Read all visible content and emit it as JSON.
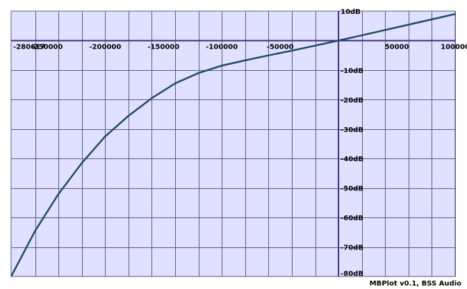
{
  "chart_data": {
    "type": "line",
    "xlim": [
      -280617,
      100000
    ],
    "ylim": [
      -80,
      10
    ],
    "x_ticks": [
      -250000,
      -200000,
      -150000,
      -100000,
      -50000,
      50000,
      100000
    ],
    "x_tick_labels": [
      "-250000",
      "-200000",
      "-150000",
      "-100000",
      "-50000",
      "50000",
      "100000"
    ],
    "x_min_label": "-280617",
    "y_ticks": [
      10,
      -10,
      -20,
      -30,
      -40,
      -50,
      -60,
      -70,
      -80
    ],
    "y_tick_labels": [
      "10dB",
      "-10dB",
      "-20dB",
      "-30dB",
      "-40dB",
      "-50dB",
      "-60dB",
      "-70dB",
      "-80dB"
    ],
    "grid": true,
    "series": [
      {
        "x": [
          -280617,
          -260000,
          -240000,
          -220000,
          -200000,
          -180000,
          -160000,
          -140000,
          -120000,
          -100000,
          -80000,
          -60000,
          -40000,
          -20000,
          0,
          20000,
          40000,
          60000,
          80000,
          100000
        ],
        "y": [
          -80,
          -64.5,
          -52,
          -41.5,
          -32.5,
          -25.5,
          -19.5,
          -14.5,
          -11,
          -8.5,
          -6.7,
          -5,
          -3.4,
          -1.7,
          0,
          1.8,
          3.6,
          5.4,
          7.2,
          9
        ]
      }
    ],
    "colors": {
      "background": "#e0e0ff",
      "grid": "#5a5a82",
      "axis": "#3a2d78",
      "line": "#1f4a66"
    }
  },
  "footer": {
    "credit": "MBPlot v0.1, BSS Audio"
  }
}
